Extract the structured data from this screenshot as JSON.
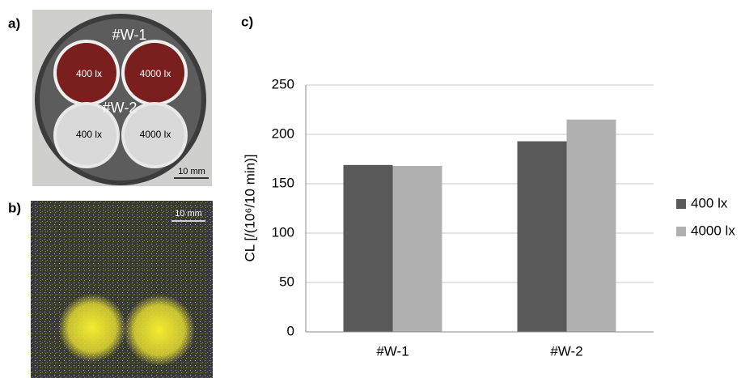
{
  "figure": {
    "panel_labels": [
      "a)",
      "b)",
      "c)"
    ],
    "photo_a": {
      "top_sample": "#W-1",
      "top_left": "400 lx",
      "top_right": "4000 lx",
      "bottom_sample": "#W-2",
      "bottom_left": "400 lx",
      "bottom_right": "4000 lx",
      "scale_bar": "10 mm"
    },
    "photo_b": {
      "scale_bar": "10 mm"
    }
  },
  "chart_data": {
    "type": "bar",
    "y_label": "CL [/(10⁶/10 min)]",
    "categories": [
      "#W-1",
      "#W-2"
    ],
    "series": [
      {
        "name": "400 lx",
        "color": "#595959",
        "values": [
          169,
          193
        ]
      },
      {
        "name": "4000 lx",
        "color": "#b0b0b0",
        "values": [
          168,
          215
        ]
      }
    ],
    "ylim": [
      0,
      250
    ],
    "yticks": [
      0,
      50,
      100,
      150,
      200,
      250
    ],
    "grid": true,
    "legend": "right"
  }
}
